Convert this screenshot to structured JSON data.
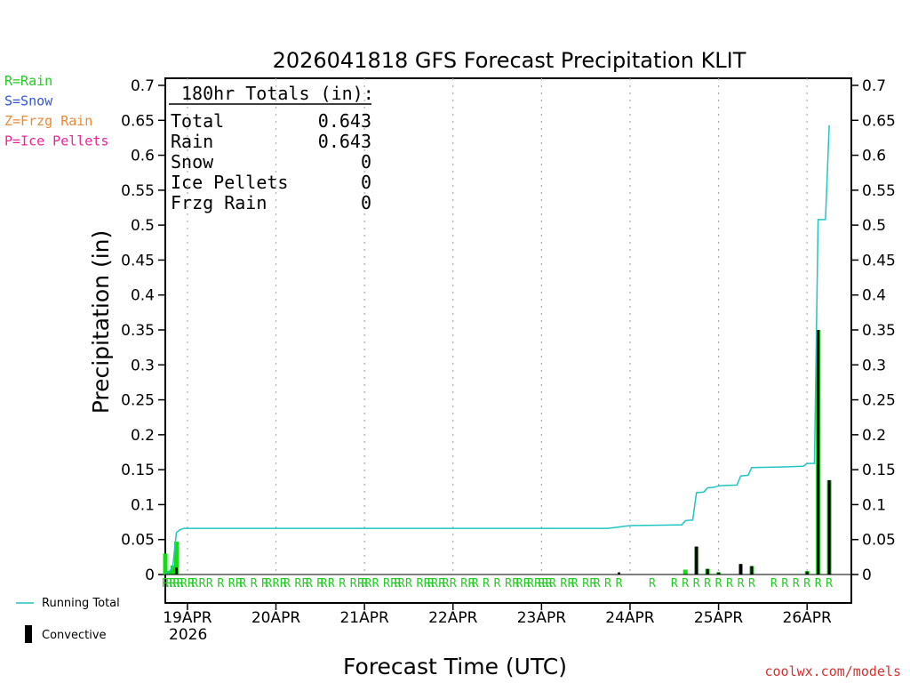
{
  "chart_data": {
    "type": "bar+line",
    "title": "2026041818 GFS Forecast Precipitation KLIT",
    "ylabel": "Precipitation (in)",
    "xlabel": "Forecast Time (UTC)",
    "ylim": [
      0,
      0.7
    ],
    "y_ticks": [
      "0",
      "0.05",
      "0.1",
      "0.15",
      "0.2",
      "0.25",
      "0.3",
      "0.35",
      "0.4",
      "0.45",
      "0.5",
      "0.55",
      "0.6",
      "0.65",
      "0.7"
    ],
    "x_range_hours": [
      0,
      186
    ],
    "x_ticks": [
      {
        "hour": 6,
        "label": "19APR"
      },
      {
        "hour": 30,
        "label": "20APR"
      },
      {
        "hour": 54,
        "label": "21APR"
      },
      {
        "hour": 78,
        "label": "22APR"
      },
      {
        "hour": 102,
        "label": "23APR"
      },
      {
        "hour": 126,
        "label": "24APR"
      },
      {
        "hour": 150,
        "label": "25APR"
      },
      {
        "hour": 174,
        "label": "26APR"
      }
    ],
    "year_label": "2026",
    "totals_box": {
      "header": "180hr Totals (in):",
      "rows": [
        {
          "label": "Total",
          "value": "0.643"
        },
        {
          "label": "Rain",
          "value": "0.643"
        },
        {
          "label": "Snow",
          "value": "0"
        },
        {
          "label": "Ice Pellets",
          "value": "0"
        },
        {
          "label": "Frzg Rain",
          "value": "0"
        }
      ]
    },
    "type_legend": [
      {
        "text": "R=Rain",
        "color": "#22cc22"
      },
      {
        "text": "S=Snow",
        "color": "#3355dd"
      },
      {
        "text": "Z=Frzg Rain",
        "color": "#ee8833"
      },
      {
        "text": "P=Ice Pellets",
        "color": "#ee2299"
      }
    ],
    "series_legend": [
      {
        "name": "Running Total",
        "color": "#22c4c4"
      },
      {
        "name": "Convective",
        "color": "#000000"
      }
    ],
    "rain_bars": [
      {
        "hour": 0,
        "value": 0.03
      },
      {
        "hour": 1,
        "value": 0.005
      },
      {
        "hour": 2,
        "value": 0.013
      },
      {
        "hour": 3,
        "value": 0.047
      },
      {
        "hour": 141,
        "value": 0.007
      },
      {
        "hour": 144,
        "value": 0.04
      },
      {
        "hour": 147,
        "value": 0.008
      },
      {
        "hour": 150,
        "value": 0.003
      },
      {
        "hour": 156,
        "value": 0.015
      },
      {
        "hour": 159,
        "value": 0.012
      },
      {
        "hour": 174,
        "value": 0.005
      },
      {
        "hour": 177,
        "value": 0.35
      },
      {
        "hour": 180,
        "value": 0.135
      }
    ],
    "convective_bars": [
      {
        "hour": 3,
        "value": 0.01
      },
      {
        "hour": 123,
        "value": 0.003
      },
      {
        "hour": 144,
        "value": 0.04
      },
      {
        "hour": 147,
        "value": 0.008
      },
      {
        "hour": 150,
        "value": 0.003
      },
      {
        "hour": 156,
        "value": 0.015
      },
      {
        "hour": 159,
        "value": 0.012
      },
      {
        "hour": 174,
        "value": 0.004
      },
      {
        "hour": 177,
        "value": 0.35
      },
      {
        "hour": 180,
        "value": 0.135
      }
    ],
    "running_total": [
      {
        "hour": 0,
        "value": 0.0
      },
      {
        "hour": 1,
        "value": 0.004
      },
      {
        "hour": 2,
        "value": 0.01
      },
      {
        "hour": 3,
        "value": 0.06
      },
      {
        "hour": 4,
        "value": 0.064
      },
      {
        "hour": 5,
        "value": 0.066
      },
      {
        "hour": 120,
        "value": 0.066
      },
      {
        "hour": 123,
        "value": 0.068
      },
      {
        "hour": 126,
        "value": 0.07
      },
      {
        "hour": 140,
        "value": 0.071
      },
      {
        "hour": 141,
        "value": 0.077
      },
      {
        "hour": 143,
        "value": 0.078
      },
      {
        "hour": 144,
        "value": 0.117
      },
      {
        "hour": 146,
        "value": 0.118
      },
      {
        "hour": 147,
        "value": 0.124
      },
      {
        "hour": 149,
        "value": 0.125
      },
      {
        "hour": 150,
        "value": 0.127
      },
      {
        "hour": 155,
        "value": 0.128
      },
      {
        "hour": 156,
        "value": 0.141
      },
      {
        "hour": 158,
        "value": 0.142
      },
      {
        "hour": 159,
        "value": 0.153
      },
      {
        "hour": 168,
        "value": 0.154
      },
      {
        "hour": 173,
        "value": 0.155
      },
      {
        "hour": 174,
        "value": 0.159
      },
      {
        "hour": 176,
        "value": 0.159
      },
      {
        "hour": 177,
        "value": 0.508
      },
      {
        "hour": 179,
        "value": 0.508
      },
      {
        "hour": 180,
        "value": 0.643
      }
    ],
    "ptype_markers": {
      "symbol": "R",
      "hours": [
        0,
        1,
        2,
        3,
        4,
        5,
        7,
        8,
        10,
        12,
        15,
        18,
        20,
        21,
        24,
        27,
        28,
        30,
        32,
        33,
        36,
        38,
        39,
        42,
        43,
        45,
        48,
        51,
        53,
        54,
        55,
        57,
        60,
        62,
        63,
        64,
        66,
        69,
        71,
        72,
        73,
        75,
        76,
        78,
        81,
        83,
        84,
        87,
        90,
        93,
        95,
        96,
        98,
        99,
        101,
        102,
        103,
        104,
        105,
        108,
        110,
        111,
        114,
        116,
        117,
        120,
        123,
        132,
        138,
        141,
        144,
        147,
        150,
        153,
        156,
        159,
        165,
        168,
        171,
        174,
        177,
        180
      ]
    }
  },
  "watermark": "coolwx.com/models"
}
